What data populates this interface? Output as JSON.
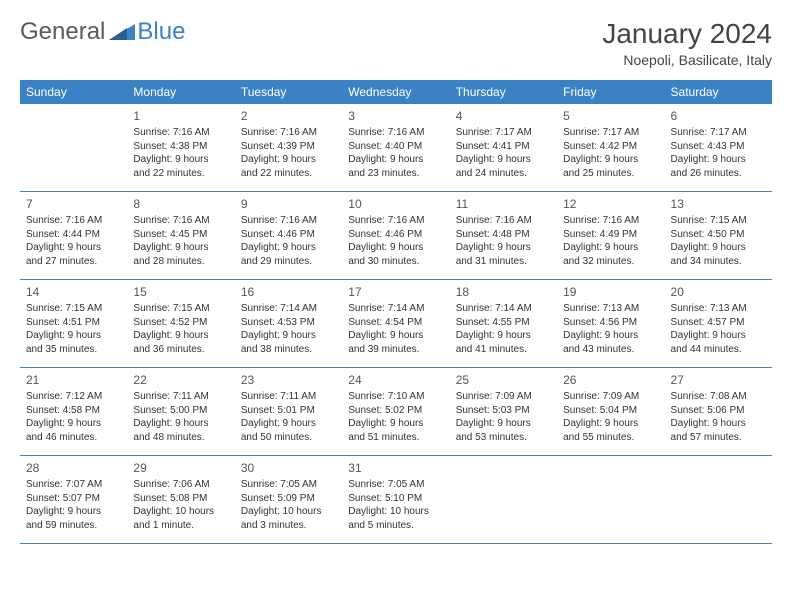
{
  "logo": {
    "general": "General",
    "blue": "Blue"
  },
  "title": "January 2024",
  "location": "Noepoli, Basilicate, Italy",
  "weekdays": [
    "Sunday",
    "Monday",
    "Tuesday",
    "Wednesday",
    "Thursday",
    "Friday",
    "Saturday"
  ],
  "colors": {
    "header_bg": "#3b82c4",
    "header_text": "#ffffff",
    "text": "#333333",
    "title": "#444444"
  },
  "weeks": [
    [
      {
        "num": "",
        "lines": []
      },
      {
        "num": "1",
        "lines": [
          "Sunrise: 7:16 AM",
          "Sunset: 4:38 PM",
          "Daylight: 9 hours",
          "and 22 minutes."
        ]
      },
      {
        "num": "2",
        "lines": [
          "Sunrise: 7:16 AM",
          "Sunset: 4:39 PM",
          "Daylight: 9 hours",
          "and 22 minutes."
        ]
      },
      {
        "num": "3",
        "lines": [
          "Sunrise: 7:16 AM",
          "Sunset: 4:40 PM",
          "Daylight: 9 hours",
          "and 23 minutes."
        ]
      },
      {
        "num": "4",
        "lines": [
          "Sunrise: 7:17 AM",
          "Sunset: 4:41 PM",
          "Daylight: 9 hours",
          "and 24 minutes."
        ]
      },
      {
        "num": "5",
        "lines": [
          "Sunrise: 7:17 AM",
          "Sunset: 4:42 PM",
          "Daylight: 9 hours",
          "and 25 minutes."
        ]
      },
      {
        "num": "6",
        "lines": [
          "Sunrise: 7:17 AM",
          "Sunset: 4:43 PM",
          "Daylight: 9 hours",
          "and 26 minutes."
        ]
      }
    ],
    [
      {
        "num": "7",
        "lines": [
          "Sunrise: 7:16 AM",
          "Sunset: 4:44 PM",
          "Daylight: 9 hours",
          "and 27 minutes."
        ]
      },
      {
        "num": "8",
        "lines": [
          "Sunrise: 7:16 AM",
          "Sunset: 4:45 PM",
          "Daylight: 9 hours",
          "and 28 minutes."
        ]
      },
      {
        "num": "9",
        "lines": [
          "Sunrise: 7:16 AM",
          "Sunset: 4:46 PM",
          "Daylight: 9 hours",
          "and 29 minutes."
        ]
      },
      {
        "num": "10",
        "lines": [
          "Sunrise: 7:16 AM",
          "Sunset: 4:46 PM",
          "Daylight: 9 hours",
          "and 30 minutes."
        ]
      },
      {
        "num": "11",
        "lines": [
          "Sunrise: 7:16 AM",
          "Sunset: 4:48 PM",
          "Daylight: 9 hours",
          "and 31 minutes."
        ]
      },
      {
        "num": "12",
        "lines": [
          "Sunrise: 7:16 AM",
          "Sunset: 4:49 PM",
          "Daylight: 9 hours",
          "and 32 minutes."
        ]
      },
      {
        "num": "13",
        "lines": [
          "Sunrise: 7:15 AM",
          "Sunset: 4:50 PM",
          "Daylight: 9 hours",
          "and 34 minutes."
        ]
      }
    ],
    [
      {
        "num": "14",
        "lines": [
          "Sunrise: 7:15 AM",
          "Sunset: 4:51 PM",
          "Daylight: 9 hours",
          "and 35 minutes."
        ]
      },
      {
        "num": "15",
        "lines": [
          "Sunrise: 7:15 AM",
          "Sunset: 4:52 PM",
          "Daylight: 9 hours",
          "and 36 minutes."
        ]
      },
      {
        "num": "16",
        "lines": [
          "Sunrise: 7:14 AM",
          "Sunset: 4:53 PM",
          "Daylight: 9 hours",
          "and 38 minutes."
        ]
      },
      {
        "num": "17",
        "lines": [
          "Sunrise: 7:14 AM",
          "Sunset: 4:54 PM",
          "Daylight: 9 hours",
          "and 39 minutes."
        ]
      },
      {
        "num": "18",
        "lines": [
          "Sunrise: 7:14 AM",
          "Sunset: 4:55 PM",
          "Daylight: 9 hours",
          "and 41 minutes."
        ]
      },
      {
        "num": "19",
        "lines": [
          "Sunrise: 7:13 AM",
          "Sunset: 4:56 PM",
          "Daylight: 9 hours",
          "and 43 minutes."
        ]
      },
      {
        "num": "20",
        "lines": [
          "Sunrise: 7:13 AM",
          "Sunset: 4:57 PM",
          "Daylight: 9 hours",
          "and 44 minutes."
        ]
      }
    ],
    [
      {
        "num": "21",
        "lines": [
          "Sunrise: 7:12 AM",
          "Sunset: 4:58 PM",
          "Daylight: 9 hours",
          "and 46 minutes."
        ]
      },
      {
        "num": "22",
        "lines": [
          "Sunrise: 7:11 AM",
          "Sunset: 5:00 PM",
          "Daylight: 9 hours",
          "and 48 minutes."
        ]
      },
      {
        "num": "23",
        "lines": [
          "Sunrise: 7:11 AM",
          "Sunset: 5:01 PM",
          "Daylight: 9 hours",
          "and 50 minutes."
        ]
      },
      {
        "num": "24",
        "lines": [
          "Sunrise: 7:10 AM",
          "Sunset: 5:02 PM",
          "Daylight: 9 hours",
          "and 51 minutes."
        ]
      },
      {
        "num": "25",
        "lines": [
          "Sunrise: 7:09 AM",
          "Sunset: 5:03 PM",
          "Daylight: 9 hours",
          "and 53 minutes."
        ]
      },
      {
        "num": "26",
        "lines": [
          "Sunrise: 7:09 AM",
          "Sunset: 5:04 PM",
          "Daylight: 9 hours",
          "and 55 minutes."
        ]
      },
      {
        "num": "27",
        "lines": [
          "Sunrise: 7:08 AM",
          "Sunset: 5:06 PM",
          "Daylight: 9 hours",
          "and 57 minutes."
        ]
      }
    ],
    [
      {
        "num": "28",
        "lines": [
          "Sunrise: 7:07 AM",
          "Sunset: 5:07 PM",
          "Daylight: 9 hours",
          "and 59 minutes."
        ]
      },
      {
        "num": "29",
        "lines": [
          "Sunrise: 7:06 AM",
          "Sunset: 5:08 PM",
          "Daylight: 10 hours",
          "and 1 minute."
        ]
      },
      {
        "num": "30",
        "lines": [
          "Sunrise: 7:05 AM",
          "Sunset: 5:09 PM",
          "Daylight: 10 hours",
          "and 3 minutes."
        ]
      },
      {
        "num": "31",
        "lines": [
          "Sunrise: 7:05 AM",
          "Sunset: 5:10 PM",
          "Daylight: 10 hours",
          "and 5 minutes."
        ]
      },
      {
        "num": "",
        "lines": []
      },
      {
        "num": "",
        "lines": []
      },
      {
        "num": "",
        "lines": []
      }
    ]
  ]
}
